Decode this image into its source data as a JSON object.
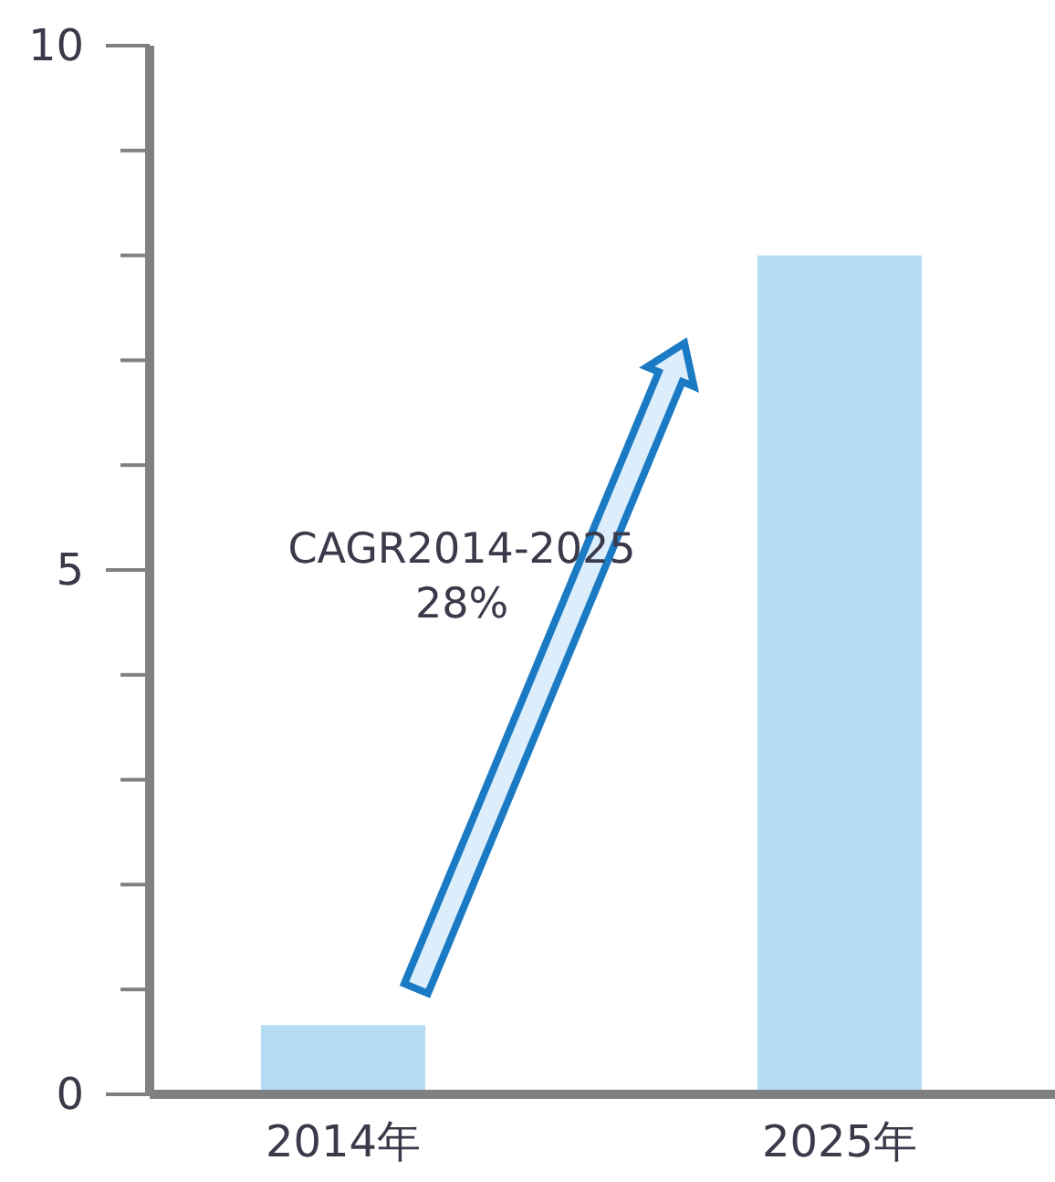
{
  "chart_data": {
    "type": "bar",
    "categories": [
      "2014年",
      "2025年"
    ],
    "values": [
      0.66,
      8
    ],
    "color": "#b5dcf5",
    "ylim": [
      0,
      10
    ],
    "yticks": [
      0,
      {
        "value": 1,
        "label": null
      },
      {
        "value": 2,
        "label": null
      },
      {
        "value": 3,
        "label": null
      },
      {
        "value": 4,
        "label": null
      },
      5,
      {
        "value": 6,
        "label": null
      },
      {
        "value": 7,
        "label": null
      },
      {
        "value": 8,
        "label": null
      },
      {
        "value": 9,
        "label": null
      },
      10
    ],
    "annotations": [
      "CAGR2014-2025\n28%"
    ]
  }
}
